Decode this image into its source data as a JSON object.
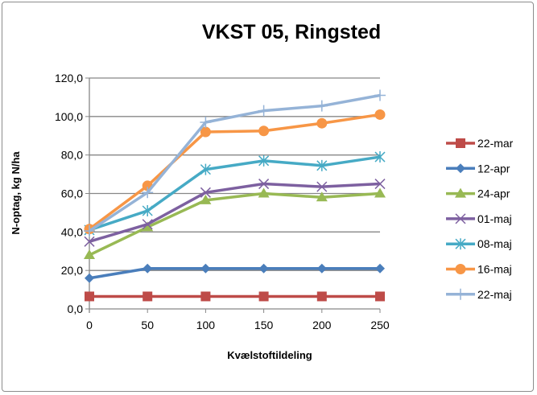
{
  "chart_data": {
    "type": "line",
    "title": "VKST 05, Ringsted",
    "xlabel": "Kvælstoftildeling",
    "ylabel": "N-optag, kg N/ha",
    "x": [
      0,
      50,
      100,
      150,
      200,
      250
    ],
    "x_tick_labels": [
      "0",
      "50",
      "100",
      "150",
      "200",
      "250"
    ],
    "y_tick_labels": [
      "0,0",
      "20,0",
      "40,0",
      "60,0",
      "80,0",
      "100,0",
      "120,0"
    ],
    "ylim": [
      0,
      120
    ],
    "xlim": [
      0,
      250
    ],
    "grid": "horizontal",
    "legend_position": "right",
    "series": [
      {
        "name": "22-mar",
        "color": "#BE4B48",
        "marker": "square",
        "values": [
          6.5,
          6.5,
          6.5,
          6.5,
          6.5,
          6.5
        ]
      },
      {
        "name": "12-apr",
        "color": "#4A7EBB",
        "marker": "diamond",
        "values": [
          16,
          21,
          21,
          21,
          21,
          21
        ]
      },
      {
        "name": "24-apr",
        "color": "#98B954",
        "marker": "triangle",
        "values": [
          28,
          42.5,
          56.5,
          60,
          58,
          60
        ]
      },
      {
        "name": "01-maj",
        "color": "#7D60A0",
        "marker": "x",
        "values": [
          35,
          44,
          60.5,
          65,
          63.5,
          65
        ]
      },
      {
        "name": "08-maj",
        "color": "#46AAC5",
        "marker": "star",
        "values": [
          41,
          51,
          72.5,
          77,
          74.5,
          79
        ]
      },
      {
        "name": "16-maj",
        "color": "#F79646",
        "marker": "circle",
        "values": [
          41.5,
          64,
          92,
          92.5,
          96.5,
          101
        ]
      },
      {
        "name": "22-maj",
        "color": "#95B3D7",
        "marker": "plus",
        "values": [
          40.5,
          60.5,
          97,
          103,
          105.5,
          111
        ]
      }
    ]
  }
}
